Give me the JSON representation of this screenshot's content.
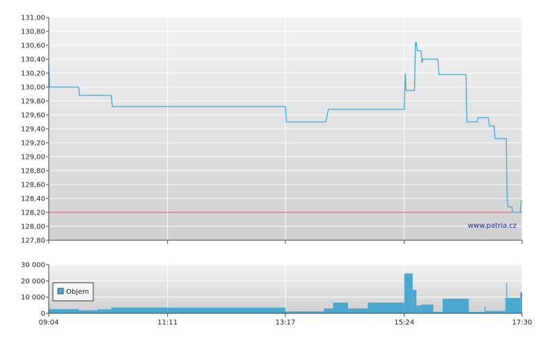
{
  "watermark": "www.patria.cz",
  "chart_data": [
    {
      "type": "line",
      "title": "",
      "xlabel": "",
      "ylabel": "",
      "ylim": [
        127.8,
        131.0
      ],
      "yticks": [
        "131,00",
        "130,80",
        "130,60",
        "130,40",
        "130,20",
        "130,00",
        "129,80",
        "129,60",
        "129,40",
        "129,20",
        "129,00",
        "128,80",
        "128,60",
        "128,40",
        "128,20",
        "128,00",
        "127,80"
      ],
      "x_ticks": [
        "09:04",
        "11:11",
        "13:17",
        "15:24",
        "17:30"
      ],
      "x_range": [
        "09:04",
        "17:30"
      ],
      "reference_line": {
        "value": 128.2,
        "color": "#d9534f"
      },
      "line_color": "#3aa8d8",
      "grid": true,
      "series": [
        {
          "points": [
            [
              "09:04",
              130.32
            ],
            [
              "09:05",
              130.0
            ],
            [
              "09:36",
              130.0
            ],
            [
              "09:37",
              129.88
            ],
            [
              "10:11",
              129.88
            ],
            [
              "10:12",
              129.72
            ],
            [
              "13:17",
              129.72
            ],
            [
              "13:18",
              129.5
            ],
            [
              "14:00",
              129.5
            ],
            [
              "14:03",
              129.68
            ],
            [
              "15:24",
              129.68
            ],
            [
              "15:25",
              130.2
            ],
            [
              "15:26",
              129.95
            ],
            [
              "15:35",
              129.95
            ],
            [
              "15:36",
              130.64
            ],
            [
              "15:37",
              130.64
            ],
            [
              "15:38",
              130.52
            ],
            [
              "15:42",
              130.52
            ],
            [
              "15:43",
              130.35
            ],
            [
              "15:44",
              130.4
            ],
            [
              "16:00",
              130.4
            ],
            [
              "16:01",
              130.18
            ],
            [
              "16:30",
              130.18
            ],
            [
              "16:31",
              129.5
            ],
            [
              "16:42",
              129.5
            ],
            [
              "16:43",
              129.56
            ],
            [
              "16:54",
              129.56
            ],
            [
              "16:55",
              129.44
            ],
            [
              "17:00",
              129.44
            ],
            [
              "17:01",
              129.26
            ],
            [
              "17:13",
              129.26
            ],
            [
              "17:14",
              128.4
            ],
            [
              "17:15",
              128.28
            ],
            [
              "17:19",
              128.28
            ],
            [
              "17:20",
              128.2
            ],
            [
              "17:28",
              128.2
            ],
            [
              "17:29",
              128.36
            ],
            [
              "17:30",
              128.36
            ]
          ]
        }
      ]
    },
    {
      "type": "bar",
      "title": "",
      "xlabel": "",
      "ylabel": "",
      "ylim": [
        0,
        30000
      ],
      "yticks": [
        "30 000",
        "20 000",
        "10 000",
        "0"
      ],
      "x_ticks": [
        "09:04",
        "11:11",
        "13:17",
        "15:24",
        "17:30"
      ],
      "bar_color": "#4aa8d0",
      "grid": true,
      "series": [
        {
          "name": "Objem",
          "segments": [
            [
              "09:04",
              "09:36",
              2600
            ],
            [
              "09:36",
              "09:56",
              1900
            ],
            [
              "09:56",
              "10:11",
              2500
            ],
            [
              "10:11",
              "11:11",
              3600
            ],
            [
              "11:11",
              "13:17",
              3500
            ],
            [
              "13:17",
              "13:58",
              1200
            ],
            [
              "13:58",
              "14:08",
              3000
            ],
            [
              "14:08",
              "14:24",
              6600
            ],
            [
              "14:24",
              "14:45",
              3000
            ],
            [
              "14:45",
              "15:24",
              6600
            ],
            [
              "15:24",
              "15:25",
              24600
            ],
            [
              "15:25",
              "15:33",
              24600
            ],
            [
              "15:33",
              "15:37",
              14500
            ],
            [
              "15:37",
              "15:42",
              4800
            ],
            [
              "15:42",
              "15:55",
              5400
            ],
            [
              "15:55",
              "16:05",
              1000
            ],
            [
              "16:05",
              "16:33",
              9000
            ],
            [
              "16:33",
              "16:50",
              900
            ],
            [
              "16:50",
              "16:51",
              4100
            ],
            [
              "16:51",
              "17:12",
              1500
            ],
            [
              "17:12",
              "17:13",
              9500
            ],
            [
              "17:13",
              "17:14",
              18800
            ],
            [
              "17:14",
              "17:16",
              9500
            ],
            [
              "17:16",
              "17:28",
              9500
            ],
            [
              "17:28",
              "17:30",
              13000
            ]
          ]
        }
      ],
      "legend": {
        "label": "Objem",
        "placement": "left"
      }
    }
  ]
}
